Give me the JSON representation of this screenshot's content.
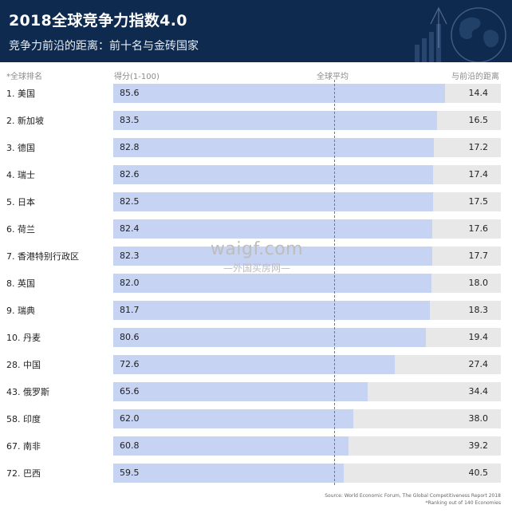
{
  "header": {
    "title": "2018全球竞争力指数4.0",
    "subtitle": "竞争力前沿的距离：前十名与金砖国家"
  },
  "columns": {
    "rank": "*全球排名",
    "score": "得分(1-100)",
    "average": "全球平均",
    "distance": "与前沿的距离"
  },
  "watermark": {
    "main": "waigf.com",
    "sub": "—外国买房网—"
  },
  "source": {
    "line1": "Source: World Economic Forum, The Global Competitiveness Report 2018",
    "line2": "*Ranking out of 140 Economies"
  },
  "colors": {
    "header_bg": "#0e2a4f",
    "bar": "#c6d3f2",
    "track": "#e8e8e8"
  },
  "chart_data": {
    "type": "bar",
    "orientation": "horizontal",
    "categories": [
      "1. 美国",
      "2. 新加坡",
      "3. 德国",
      "4. 瑞士",
      "5. 日本",
      "6. 荷兰",
      "7. 香港特别行政区",
      "8. 英国",
      "9. 瑞典",
      "10. 丹麦",
      "28. 中国",
      "43. 俄罗斯",
      "58. 印度",
      "67. 南非",
      "72. 巴西"
    ],
    "series": [
      {
        "name": "得分(1-100)",
        "values": [
          85.6,
          83.5,
          82.8,
          82.6,
          82.5,
          82.4,
          82.3,
          82.0,
          81.7,
          80.6,
          72.6,
          65.6,
          62.0,
          60.8,
          59.5
        ]
      },
      {
        "name": "与前沿的距离",
        "values": [
          14.4,
          16.5,
          17.2,
          17.4,
          17.5,
          17.6,
          17.7,
          18.0,
          18.3,
          19.4,
          27.4,
          34.4,
          38.0,
          39.2,
          40.5
        ]
      }
    ],
    "global_average": 60,
    "xlim": [
      0,
      100
    ],
    "grid": false
  }
}
